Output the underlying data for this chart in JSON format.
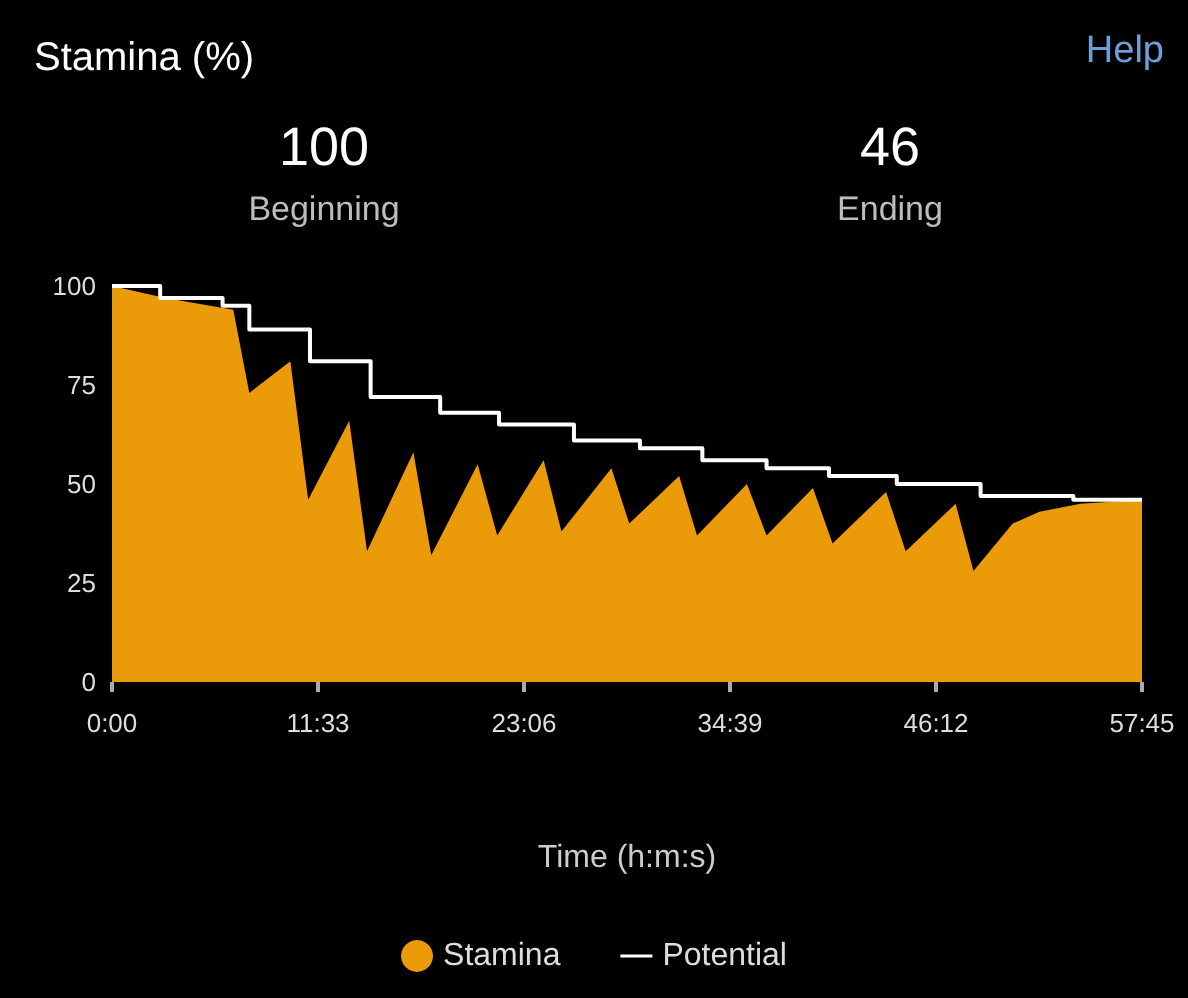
{
  "chart_data": {
    "type": "area",
    "title": "Stamina (%)",
    "xlabel": "Time (h:m:s)",
    "annotations": [
      "Help",
      "100",
      "Beginning",
      "46",
      "Ending"
    ],
    "xlim": [
      0,
      57.75
    ],
    "xticks": [
      {
        "value": 0,
        "label": "0:00"
      },
      {
        "value": 11.55,
        "label": "11:33"
      },
      {
        "value": 23.1,
        "label": "23:06"
      },
      {
        "value": 34.65,
        "label": "34:39"
      },
      {
        "value": 46.2,
        "label": "46:12"
      },
      {
        "value": 57.75,
        "label": "57:45"
      }
    ],
    "ylim": [
      0,
      100
    ],
    "yticks": [
      0,
      25,
      50,
      75,
      100
    ],
    "grid": false,
    "legend": "bottom",
    "series": [
      {
        "name": "Stamina",
        "color": "#eb9a0a",
        "x": [
          0,
          3,
          6.8,
          7.7,
          10.0,
          11.0,
          13.3,
          14.3,
          16.9,
          17.9,
          20.5,
          21.6,
          24.2,
          25.2,
          28.0,
          29.0,
          31.8,
          32.8,
          35.6,
          36.7,
          39.3,
          40.4,
          43.4,
          44.5,
          47.3,
          48.3,
          50.5,
          52.0,
          54.3,
          57.75
        ],
        "values": [
          100,
          97,
          94,
          73,
          81,
          46,
          66,
          33,
          58,
          32,
          55,
          37,
          56,
          38,
          54,
          40,
          52,
          37,
          50,
          37,
          49,
          35,
          48,
          33,
          45,
          28,
          40,
          43,
          45,
          46
        ]
      },
      {
        "name": "Potential",
        "type": "step",
        "color": "#ffffff",
        "x": [
          0,
          2.7,
          6.2,
          7.7,
          11.1,
          14.5,
          18.4,
          21.7,
          25.9,
          29.6,
          33.1,
          36.7,
          40.2,
          44.0,
          48.7,
          53.9,
          57.75
        ],
        "values": [
          100,
          97,
          95,
          89,
          81,
          72,
          68,
          65,
          61,
          59,
          56,
          54,
          52,
          50,
          47,
          46,
          46
        ]
      }
    ]
  }
}
